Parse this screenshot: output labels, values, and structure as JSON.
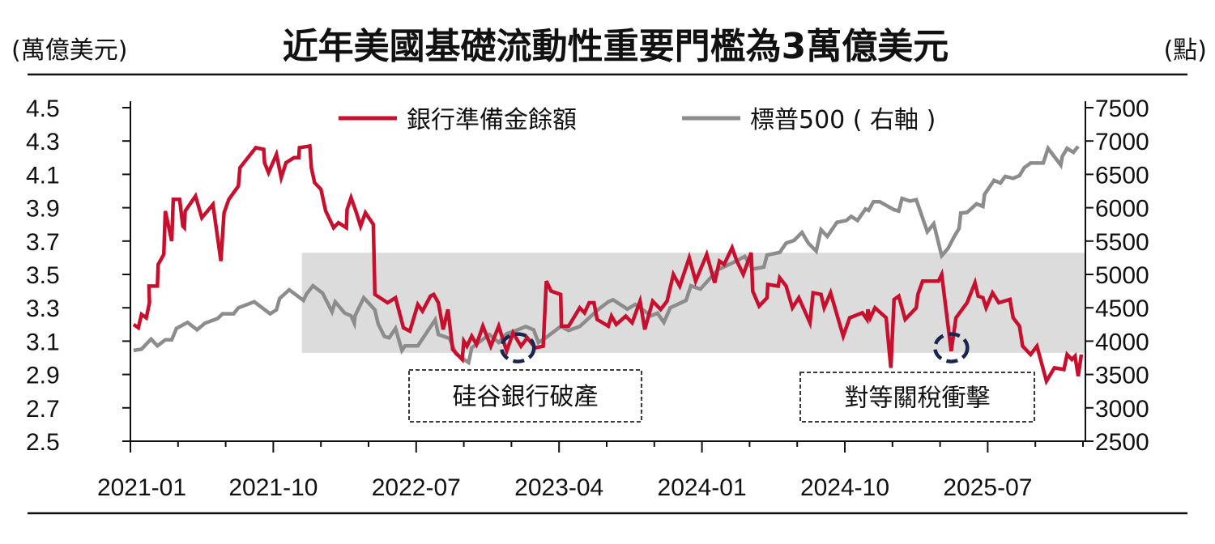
{
  "chart_data": {
    "type": "line",
    "title": "近年美國基礎流動性重要門檻為3萬億美元",
    "ylabel_left": "(萬億美元)",
    "ylabel_right": "(點)",
    "x_unit": "months since 2021-01",
    "xlim": [
      0,
      60
    ],
    "x_ticks": [
      {
        "m": 0,
        "label": "2021-01"
      },
      {
        "m": 9,
        "label": "2021-10"
      },
      {
        "m": 18,
        "label": "2022-07"
      },
      {
        "m": 27,
        "label": "2023-04"
      },
      {
        "m": 36,
        "label": "2024-01"
      },
      {
        "m": 45,
        "label": "2024-10"
      },
      {
        "m": 54,
        "label": "2025-07"
      }
    ],
    "ylim_left": [
      2.5,
      4.5
    ],
    "y_ticks_left": [
      "4.5",
      "4.3",
      "4.1",
      "3.9",
      "3.7",
      "3.5",
      "3.3",
      "3.1",
      "2.9",
      "2.7",
      "2.5"
    ],
    "ylim_right": [
      2500,
      7500
    ],
    "y_ticks_right": [
      "7500",
      "7000",
      "6500",
      "6000",
      "5500",
      "5000",
      "4500",
      "4000",
      "3500",
      "3000",
      "2500"
    ],
    "legend": [
      "銀行準備金餘額",
      "標普500 ( 右軸 )"
    ],
    "legend_placement": "top-center",
    "colors": {
      "reserves": "#c8102e",
      "sp500": "#8c8c8c",
      "band": "#dcdcdc",
      "circle": "#1a2550"
    },
    "highlight_band": {
      "axis": "left",
      "y_range": [
        3.03,
        3.63
      ],
      "x_range": [
        10.8,
        60
      ]
    },
    "annotations": [
      {
        "text": "硅谷銀行破產",
        "m": 24.4,
        "value": 3.07
      },
      {
        "text": "對等關稅衝擊",
        "m": 51.7,
        "value": 3.07
      }
    ],
    "series": [
      {
        "name": "銀行準備金餘額",
        "axis": "left",
        "points": [
          [
            0.2,
            3.2
          ],
          [
            0.5,
            3.18
          ],
          [
            0.7,
            3.26
          ],
          [
            1.0,
            3.24
          ],
          [
            1.2,
            3.33
          ],
          [
            1.17,
            3.43
          ],
          [
            1.7,
            3.43
          ],
          [
            1.75,
            3.56
          ],
          [
            2.1,
            3.62
          ],
          [
            2.2,
            3.88
          ],
          [
            2.6,
            3.7
          ],
          [
            2.7,
            3.95
          ],
          [
            3.1,
            3.95
          ],
          [
            3.3,
            3.79
          ],
          [
            3.4,
            3.78
          ],
          [
            3.45,
            3.88
          ],
          [
            4.1,
            3.97
          ],
          [
            4.5,
            3.84
          ],
          [
            5.2,
            3.92
          ],
          [
            5.7,
            3.58
          ],
          [
            5.9,
            3.87
          ],
          [
            6.2,
            3.95
          ],
          [
            6.8,
            4.03
          ],
          [
            6.9,
            4.14
          ],
          [
            7.9,
            4.26
          ],
          [
            8.4,
            4.25
          ],
          [
            8.45,
            4.17
          ],
          [
            8.7,
            4.11
          ],
          [
            9.2,
            4.22
          ],
          [
            9.5,
            4.08
          ],
          [
            9.8,
            4.17
          ],
          [
            10.3,
            4.2
          ],
          [
            10.6,
            4.2
          ],
          [
            10.65,
            4.26
          ],
          [
            11.3,
            4.27
          ],
          [
            11.4,
            4.14
          ],
          [
            11.6,
            4.05
          ],
          [
            12.0,
            4.01
          ],
          [
            12.3,
            3.88
          ],
          [
            12.8,
            3.78
          ],
          [
            13.1,
            3.81
          ],
          [
            13.6,
            3.78
          ],
          [
            13.65,
            3.89
          ],
          [
            13.9,
            3.96
          ],
          [
            14.2,
            3.88
          ],
          [
            14.5,
            3.79
          ],
          [
            14.8,
            3.87
          ],
          [
            15.3,
            3.8
          ],
          [
            15.4,
            3.38
          ],
          [
            16.2,
            3.33
          ],
          [
            16.7,
            3.36
          ],
          [
            17.2,
            3.18
          ],
          [
            17.6,
            3.16
          ],
          [
            18.1,
            3.32
          ],
          [
            18.4,
            3.28
          ],
          [
            18.9,
            3.37
          ],
          [
            19.1,
            3.38
          ],
          [
            19.4,
            3.33
          ],
          [
            19.7,
            3.17
          ],
          [
            20.0,
            3.29
          ],
          [
            20.3,
            3.05
          ],
          [
            20.9,
            2.99
          ],
          [
            21.0,
            3.1
          ],
          [
            21.2,
            3.07
          ],
          [
            21.5,
            3.13
          ],
          [
            21.8,
            3.08
          ],
          [
            22.2,
            3.19
          ],
          [
            22.7,
            3.07
          ],
          [
            23.2,
            3.19
          ],
          [
            23.7,
            3.04
          ],
          [
            24.1,
            3.15
          ],
          [
            24.6,
            3.07
          ],
          [
            25.0,
            3.12
          ],
          [
            25.5,
            3.06
          ],
          [
            26.0,
            3.07
          ],
          [
            26.2,
            3.46
          ],
          [
            26.5,
            3.4
          ],
          [
            27.1,
            3.38
          ],
          [
            27.15,
            3.19
          ],
          [
            27.6,
            3.19
          ],
          [
            28.3,
            3.3
          ],
          [
            28.6,
            3.27
          ],
          [
            28.9,
            3.33
          ],
          [
            29.2,
            3.33
          ],
          [
            29.4,
            3.23
          ],
          [
            30.1,
            3.19
          ],
          [
            30.3,
            3.25
          ],
          [
            30.6,
            3.2
          ],
          [
            31.2,
            3.25
          ],
          [
            31.6,
            3.21
          ],
          [
            32.1,
            3.34
          ],
          [
            32.4,
            3.17
          ],
          [
            32.9,
            3.34
          ],
          [
            33.4,
            3.29
          ],
          [
            33.8,
            3.34
          ],
          [
            34.2,
            3.5
          ],
          [
            34.6,
            3.43
          ],
          [
            35.2,
            3.6
          ],
          [
            35.6,
            3.46
          ],
          [
            36.3,
            3.62
          ],
          [
            36.8,
            3.45
          ],
          [
            37.1,
            3.58
          ],
          [
            37.4,
            3.56
          ],
          [
            37.9,
            3.66
          ],
          [
            38.2,
            3.58
          ],
          [
            38.6,
            3.5
          ],
          [
            39.1,
            3.63
          ],
          [
            39.2,
            3.4
          ],
          [
            39.6,
            3.31
          ],
          [
            40.1,
            3.36
          ],
          [
            40.15,
            3.44
          ],
          [
            40.8,
            3.43
          ],
          [
            40.9,
            3.48
          ],
          [
            41.3,
            3.43
          ],
          [
            41.7,
            3.3
          ],
          [
            42.1,
            3.36
          ],
          [
            42.8,
            3.21
          ],
          [
            43.0,
            3.39
          ],
          [
            43.5,
            3.38
          ],
          [
            43.7,
            3.3
          ],
          [
            44.1,
            3.39
          ],
          [
            44.9,
            3.13
          ],
          [
            45.3,
            3.24
          ],
          [
            46.1,
            3.27
          ],
          [
            46.4,
            3.23
          ],
          [
            46.45,
            3.29
          ],
          [
            46.6,
            3.24
          ],
          [
            46.9,
            3.3
          ],
          [
            47.6,
            3.24
          ],
          [
            47.9,
            2.94
          ],
          [
            48.1,
            3.35
          ],
          [
            48.4,
            3.37
          ],
          [
            48.8,
            3.23
          ],
          [
            49.5,
            3.3
          ],
          [
            49.6,
            3.38
          ],
          [
            49.9,
            3.46
          ],
          [
            50.9,
            3.46
          ],
          [
            51.1,
            3.5
          ],
          [
            51.7,
            3.04
          ],
          [
            52.0,
            3.24
          ],
          [
            52.7,
            3.33
          ],
          [
            53.2,
            3.45
          ],
          [
            53.4,
            3.37
          ],
          [
            53.7,
            3.36
          ],
          [
            53.9,
            3.3
          ],
          [
            54.3,
            3.39
          ],
          [
            54.7,
            3.33
          ],
          [
            55.4,
            3.35
          ],
          [
            55.6,
            3.24
          ],
          [
            56.0,
            3.19
          ],
          [
            56.2,
            3.07
          ],
          [
            56.7,
            3.02
          ],
          [
            57.1,
            3.07
          ],
          [
            57.7,
            2.86
          ],
          [
            58.2,
            2.94
          ],
          [
            58.8,
            2.93
          ],
          [
            59.0,
            3.02
          ],
          [
            59.3,
            2.99
          ],
          [
            59.5,
            3.01
          ],
          [
            59.7,
            2.89
          ],
          [
            59.9,
            3.02
          ]
        ]
      },
      {
        "name": "標普500",
        "axis": "right",
        "points": [
          [
            0.2,
            3860
          ],
          [
            0.7,
            3880
          ],
          [
            1.3,
            4030
          ],
          [
            1.7,
            3930
          ],
          [
            2.2,
            4020
          ],
          [
            2.6,
            4020
          ],
          [
            2.9,
            4190
          ],
          [
            3.6,
            4280
          ],
          [
            4.2,
            4170
          ],
          [
            4.7,
            4270
          ],
          [
            5.5,
            4340
          ],
          [
            5.8,
            4410
          ],
          [
            6.5,
            4410
          ],
          [
            6.8,
            4500
          ],
          [
            7.8,
            4590
          ],
          [
            8.8,
            4410
          ],
          [
            9.2,
            4470
          ],
          [
            9.4,
            4640
          ],
          [
            10.0,
            4770
          ],
          [
            10.9,
            4610
          ],
          [
            11.1,
            4710
          ],
          [
            11.5,
            4830
          ],
          [
            12.1,
            4720
          ],
          [
            12.7,
            4440
          ],
          [
            12.9,
            4590
          ],
          [
            13.5,
            4420
          ],
          [
            13.9,
            4380
          ],
          [
            14.1,
            4270
          ],
          [
            14.15,
            4380
          ],
          [
            14.7,
            4650
          ],
          [
            15.4,
            4470
          ],
          [
            15.6,
            4260
          ],
          [
            16.0,
            4070
          ],
          [
            16.3,
            4050
          ],
          [
            16.7,
            4190
          ],
          [
            17.1,
            3860
          ],
          [
            17.3,
            3930
          ],
          [
            18.1,
            3930
          ],
          [
            19.2,
            4320
          ],
          [
            19.4,
            4100
          ],
          [
            20.1,
            4040
          ],
          [
            20.5,
            3810
          ],
          [
            21.3,
            3680
          ],
          [
            21.5,
            3900
          ],
          [
            22.6,
            4100
          ],
          [
            23.2,
            3980
          ],
          [
            23.7,
            4110
          ],
          [
            24.4,
            4170
          ],
          [
            24.9,
            4220
          ],
          [
            25.4,
            4170
          ],
          [
            25.7,
            3980
          ],
          [
            26.1,
            4040
          ],
          [
            27.1,
            4220
          ],
          [
            27.6,
            4160
          ],
          [
            28.3,
            4220
          ],
          [
            29.5,
            4480
          ],
          [
            30.1,
            4590
          ],
          [
            30.4,
            4620
          ],
          [
            31.3,
            4480
          ],
          [
            31.8,
            4550
          ],
          [
            32.8,
            4380
          ],
          [
            33.2,
            4420
          ],
          [
            33.6,
            4280
          ],
          [
            34.0,
            4500
          ],
          [
            35.0,
            4610
          ],
          [
            35.3,
            4830
          ],
          [
            35.9,
            4780
          ],
          [
            37.0,
            5070
          ],
          [
            37.9,
            5170
          ],
          [
            38.7,
            5270
          ],
          [
            39.2,
            5080
          ],
          [
            39.9,
            5110
          ],
          [
            40.1,
            5290
          ],
          [
            40.9,
            5330
          ],
          [
            41.3,
            5470
          ],
          [
            41.8,
            5510
          ],
          [
            42.3,
            5630
          ],
          [
            42.7,
            5470
          ],
          [
            43.2,
            5350
          ],
          [
            43.5,
            5670
          ],
          [
            43.9,
            5570
          ],
          [
            44.5,
            5780
          ],
          [
            45.1,
            5810
          ],
          [
            45.4,
            5870
          ],
          [
            45.8,
            5810
          ],
          [
            46.3,
            5980
          ],
          [
            46.5,
            5960
          ],
          [
            46.8,
            6090
          ],
          [
            47.2,
            6090
          ],
          [
            48.1,
            5970
          ],
          [
            48.4,
            5950
          ],
          [
            48.6,
            6140
          ],
          [
            49.1,
            6100
          ],
          [
            49.5,
            6120
          ],
          [
            50.2,
            5640
          ],
          [
            50.6,
            5760
          ],
          [
            51.1,
            5280
          ],
          [
            51.5,
            5390
          ],
          [
            51.9,
            5570
          ],
          [
            52.2,
            5690
          ],
          [
            52.3,
            5920
          ],
          [
            52.7,
            5930
          ],
          [
            53.3,
            6060
          ],
          [
            53.7,
            6020
          ],
          [
            53.8,
            6200
          ],
          [
            54.4,
            6410
          ],
          [
            54.8,
            6370
          ],
          [
            55.1,
            6470
          ],
          [
            55.6,
            6440
          ],
          [
            56.0,
            6480
          ],
          [
            56.3,
            6600
          ],
          [
            56.7,
            6670
          ],
          [
            57.5,
            6670
          ],
          [
            57.8,
            6890
          ],
          [
            58.6,
            6640
          ],
          [
            58.7,
            6770
          ],
          [
            59.0,
            6890
          ],
          [
            59.4,
            6830
          ],
          [
            59.7,
            6920
          ]
        ]
      }
    ]
  }
}
